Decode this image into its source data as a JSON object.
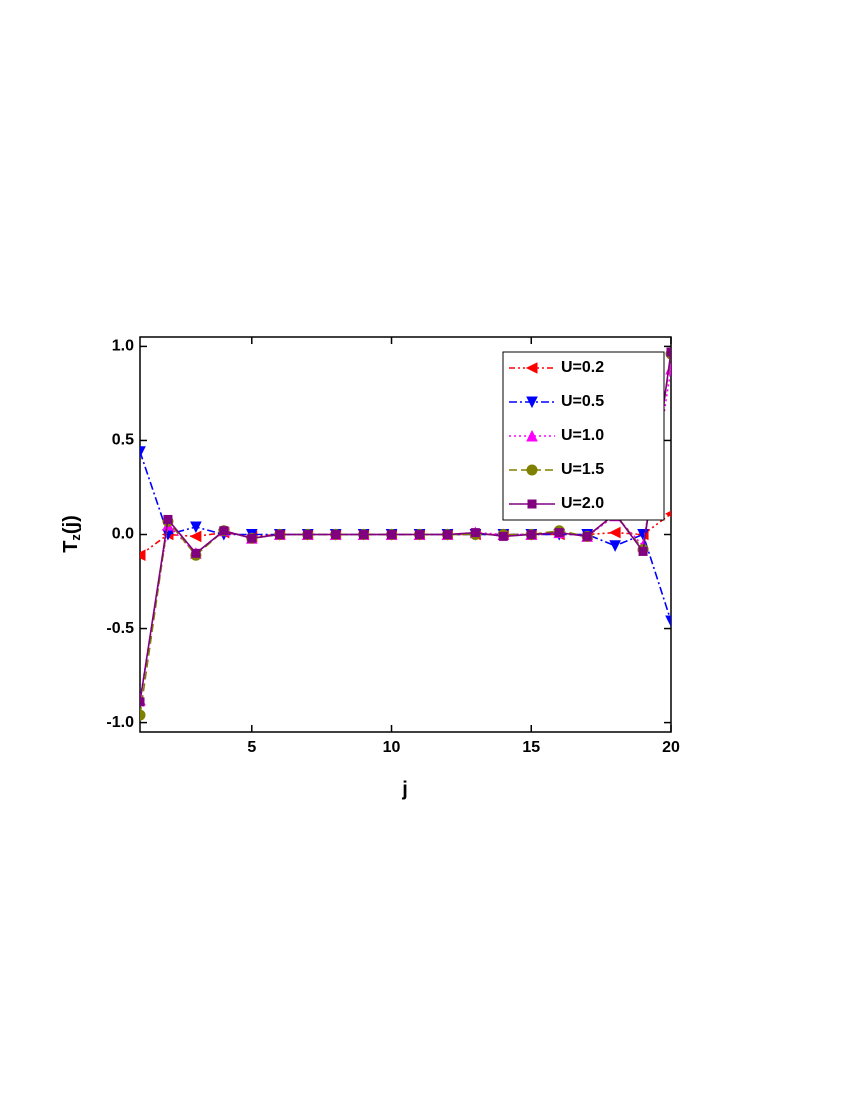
{
  "chart_data": {
    "type": "line",
    "x_label": "j",
    "y_label": {
      "base": "T",
      "subscript": "z",
      "suffix": "(j)"
    },
    "x": [
      1,
      2,
      3,
      4,
      5,
      6,
      7,
      8,
      9,
      10,
      11,
      12,
      13,
      14,
      15,
      16,
      17,
      18,
      19,
      20
    ],
    "xlim": [
      1,
      20
    ],
    "xticks": [
      5,
      10,
      15,
      20
    ],
    "ylim": [
      -1.05,
      1.05
    ],
    "yticks": [
      {
        "value": -1,
        "label": "-1.0"
      },
      -0.5,
      {
        "value": 0,
        "label": "0.0"
      },
      0.5,
      {
        "value": 1,
        "label": "1.0"
      }
    ],
    "legend": "upper right",
    "series": [
      {
        "name": "U=0.2",
        "color": "#ff0000",
        "marker": "triangle-left",
        "dash": "dash-dot-dot",
        "values": [
          -0.11,
          0.0,
          -0.01,
          0.01,
          -0.01,
          0.0,
          0.0,
          0.0,
          0.0,
          0.0,
          0.0,
          0.0,
          0.0,
          0.0,
          0.0,
          0.0,
          0.0,
          0.01,
          0.0,
          0.11
        ]
      },
      {
        "name": "U=0.5",
        "color": "#0000ff",
        "marker": "triangle-down",
        "dash": "dash-dot",
        "values": [
          0.44,
          0.0,
          0.04,
          0.0,
          0.0,
          0.0,
          0.0,
          0.0,
          0.0,
          0.0,
          0.0,
          0.0,
          0.0,
          0.0,
          0.0,
          0.0,
          0.0,
          -0.06,
          0.0,
          -0.46
        ]
      },
      {
        "name": "U=1.0",
        "color": "#ff00ff",
        "marker": "triangle-up",
        "dash": "dot",
        "values": [
          -0.88,
          0.05,
          -0.1,
          0.02,
          -0.02,
          0.0,
          0.0,
          0.0,
          0.0,
          0.0,
          0.0,
          0.0,
          0.01,
          0.0,
          0.0,
          0.01,
          -0.01,
          0.1,
          -0.06,
          0.88
        ]
      },
      {
        "name": "U=1.5",
        "color": "#808000",
        "marker": "circle",
        "dash": "dash",
        "values": [
          -0.96,
          0.07,
          -0.11,
          0.02,
          -0.02,
          0.0,
          0.0,
          0.0,
          0.0,
          0.0,
          0.0,
          0.0,
          0.0,
          0.0,
          0.0,
          0.02,
          -0.01,
          0.11,
          -0.08,
          0.96
        ]
      },
      {
        "name": "U=2.0",
        "color": "#800080",
        "marker": "square",
        "dash": "solid",
        "values": [
          -0.89,
          0.08,
          -0.1,
          0.02,
          -0.02,
          0.0,
          0.0,
          0.0,
          0.0,
          0.0,
          0.0,
          0.0,
          0.01,
          -0.01,
          0.0,
          0.01,
          -0.01,
          0.11,
          -0.09,
          0.97
        ]
      }
    ]
  }
}
